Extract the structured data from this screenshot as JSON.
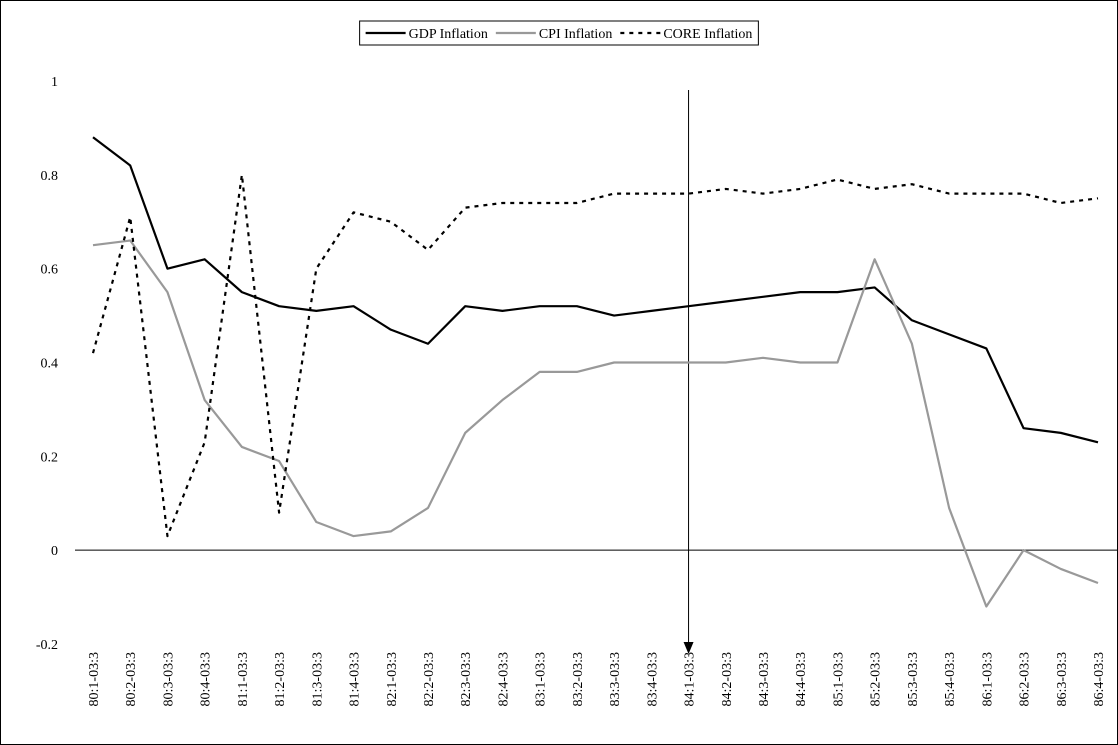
{
  "chart_data": {
    "type": "line",
    "categories": [
      "80:1-03:3",
      "80:2-03:3",
      "80:3-03:3",
      "80:4-03:3",
      "81:1-03:3",
      "81:2-03:3",
      "81:3-03:3",
      "81:4-03:3",
      "82:1-03:3",
      "82:2-03:3",
      "82:3-03:3",
      "82:4-03:3",
      "83:1-03:3",
      "83:2-03:3",
      "83:3-03:3",
      "83:4-03:3",
      "84:1-03:3",
      "84:2-03:3",
      "84:3-03:3",
      "84:4-03:3",
      "85:1-03:3",
      "85:2-03:3",
      "85:3-03:3",
      "85:4-03:3",
      "86:1-03:3",
      "86:2-03:3",
      "86:3-03:3",
      "86:4-03:3"
    ],
    "series": [
      {
        "name": "GDP Inflation",
        "color": "#000000",
        "line_style": "solid",
        "values": [
          0.88,
          0.82,
          0.6,
          0.62,
          0.55,
          0.52,
          0.51,
          0.52,
          0.47,
          0.44,
          0.52,
          0.51,
          0.52,
          0.52,
          0.5,
          0.51,
          0.52,
          0.53,
          0.54,
          0.55,
          0.55,
          0.56,
          0.49,
          0.46,
          0.43,
          0.26,
          0.25,
          0.23
        ]
      },
      {
        "name": "CPI Inflation",
        "color": "#999999",
        "line_style": "solid",
        "values": [
          0.65,
          0.66,
          0.55,
          0.32,
          0.22,
          0.19,
          0.06,
          0.03,
          0.04,
          0.09,
          0.25,
          0.32,
          0.38,
          0.38,
          0.4,
          0.4,
          0.4,
          0.4,
          0.41,
          0.4,
          0.4,
          0.62,
          0.44,
          0.09,
          -0.12,
          0.0,
          -0.04,
          -0.07
        ]
      },
      {
        "name": "CORE Inflation",
        "color": "#000000",
        "line_style": "dotted",
        "values": [
          0.42,
          0.71,
          0.03,
          0.23,
          0.8,
          0.08,
          0.6,
          0.72,
          0.7,
          0.64,
          0.73,
          0.74,
          0.74,
          0.74,
          0.76,
          0.76,
          0.76,
          0.77,
          0.76,
          0.77,
          0.79,
          0.77,
          0.78,
          0.76,
          0.76,
          0.76,
          0.74,
          0.75
        ]
      }
    ],
    "ylim": [
      -0.2,
      1
    ],
    "yticks": [
      -0.2,
      0,
      0.2,
      0.4,
      0.6,
      0.8,
      1
    ],
    "legend": "top"
  }
}
